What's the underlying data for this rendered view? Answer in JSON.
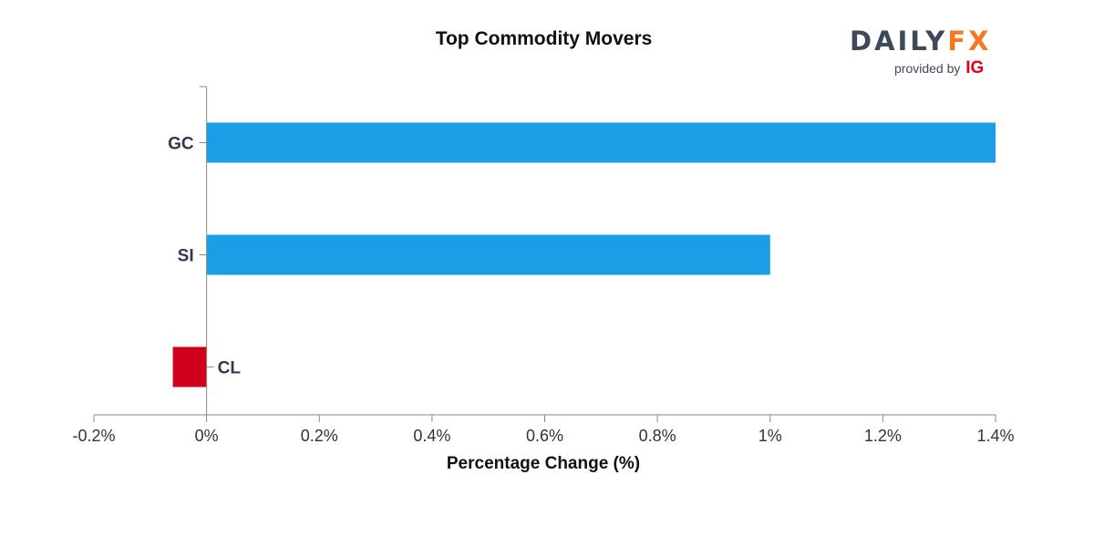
{
  "brand": {
    "name_part1": "DAILY",
    "name_part2": "FX",
    "provided_by": "provided by",
    "provider": "IG"
  },
  "colors": {
    "positive": "#1b9ee6",
    "negative": "#d0021b",
    "axis": "#888888",
    "label": "#2f3a4a"
  },
  "chart_data": {
    "type": "bar",
    "orientation": "horizontal",
    "title": "Top Commodity Movers",
    "xlabel": "Percentage Change (%)",
    "ylabel": "",
    "categories": [
      "GC",
      "SI",
      "CL"
    ],
    "values": [
      1.4,
      1.0,
      -0.06
    ],
    "xlim": [
      -0.2,
      1.4
    ],
    "xticks": [
      -0.2,
      0,
      0.2,
      0.4,
      0.6,
      0.8,
      1,
      1.2,
      1.4
    ],
    "xtick_labels": [
      "-0.2%",
      "0%",
      "0.2%",
      "0.4%",
      "0.6%",
      "0.8%",
      "1%",
      "1.2%",
      "1.4%"
    ],
    "grid": false,
    "legend": "none"
  }
}
